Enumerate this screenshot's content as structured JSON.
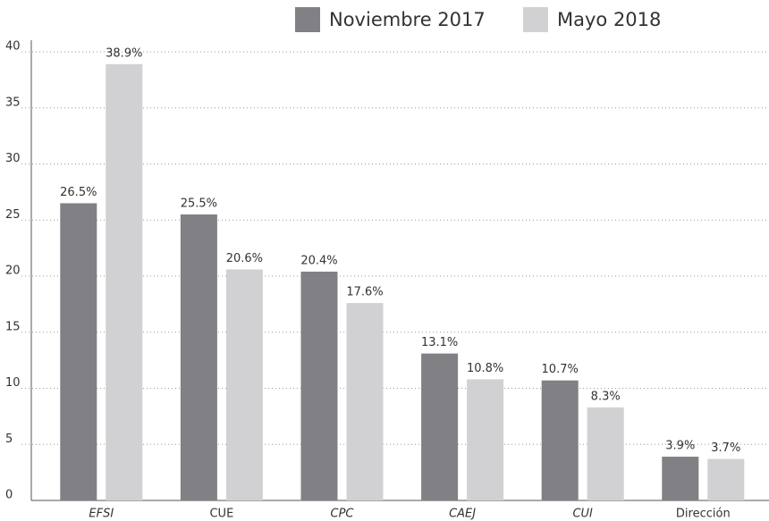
{
  "chart_data": {
    "type": "bar",
    "categories": [
      "EFSI",
      "CUE",
      "CPC",
      "CAEJ",
      "CUI",
      "Dirección"
    ],
    "series": [
      {
        "name": "Noviembre 2017",
        "color": "#808085",
        "values": [
          26.5,
          25.5,
          20.4,
          13.1,
          10.7,
          3.9
        ],
        "value_labels": [
          "26.5%",
          "25.5%",
          "20.4%",
          "13.1%",
          "10.7%",
          "3.9%"
        ]
      },
      {
        "name": "Mayo 2018",
        "color": "#d1d1d3",
        "values": [
          38.9,
          20.6,
          17.6,
          10.8,
          8.3,
          3.7
        ],
        "value_labels": [
          "38.9%",
          "20.6%",
          "17.6%",
          "10.8%",
          "8.3%",
          "3.7%"
        ]
      }
    ],
    "ylim": [
      0,
      40
    ],
    "yticks": [
      0,
      5,
      10,
      15,
      20,
      25,
      30,
      35,
      40
    ],
    "grid": true
  }
}
